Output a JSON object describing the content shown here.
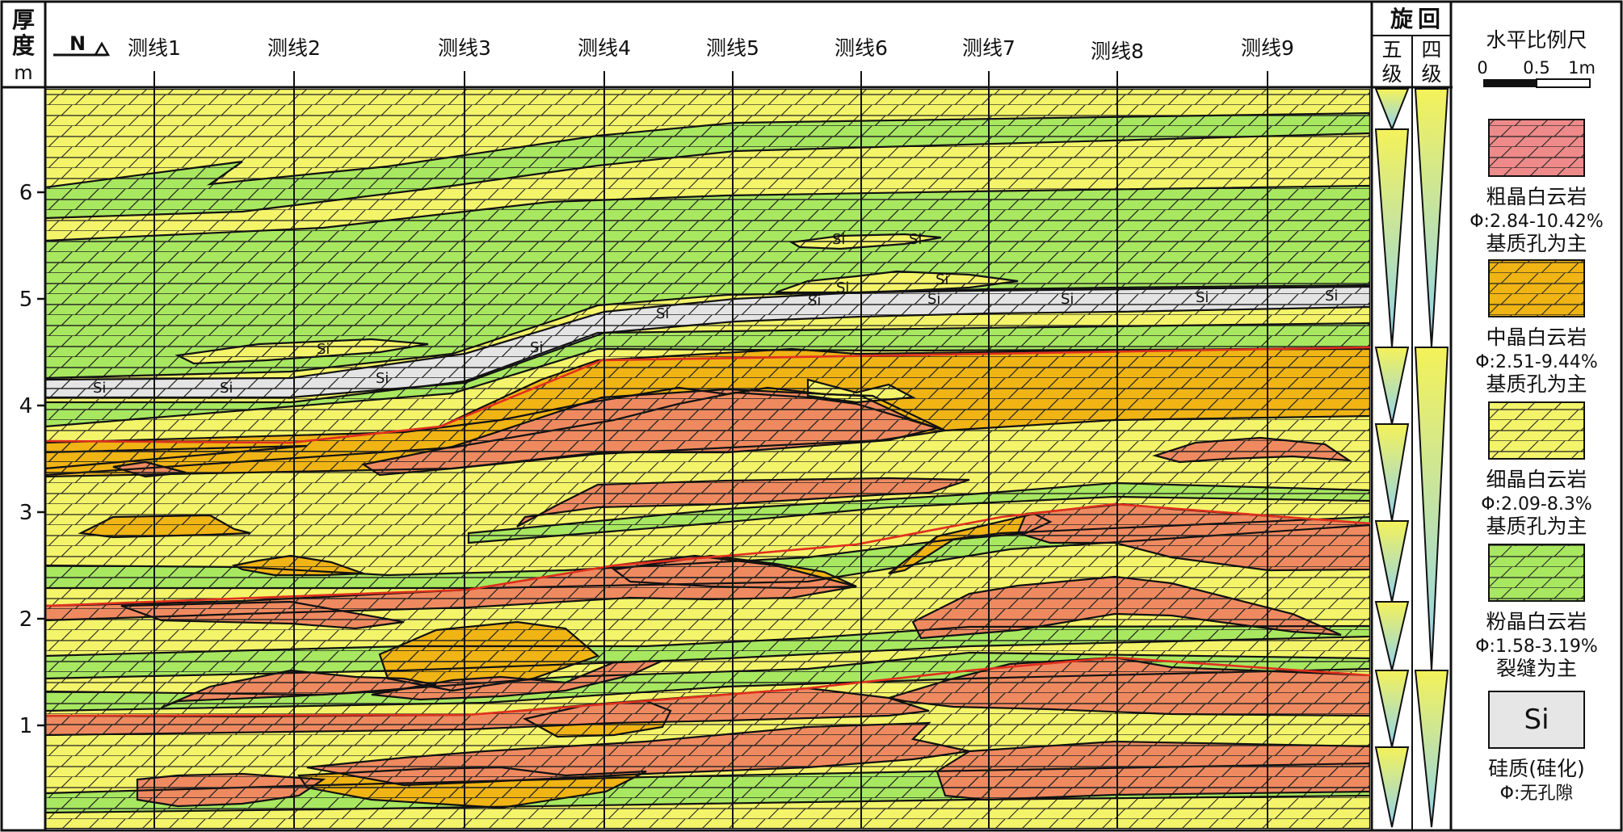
{
  "axis": {
    "title_chars": [
      "厚",
      "度"
    ],
    "unit": "m",
    "ticks": [
      "1",
      "2",
      "3",
      "4",
      "5",
      "6"
    ]
  },
  "north_arrow": {
    "label": "N"
  },
  "survey_lines": [
    "测线1",
    "测线2",
    "测线3",
    "测线4",
    "测线5",
    "测线6",
    "测线7",
    "测线8",
    "测线9"
  ],
  "cycle_header": {
    "title_chars": [
      "旋",
      "回"
    ],
    "fifth_chars": [
      "五",
      "级"
    ],
    "fourth_chars": [
      "四",
      "级"
    ]
  },
  "scale_bar": {
    "title": "水平比例尺",
    "labels": [
      "0",
      "0.5",
      "1m"
    ]
  },
  "silica_label": "Si",
  "legend": [
    {
      "name": "粗晶白云岩",
      "porosity": "Φ:2.84-10.42%",
      "pore_type": "基质孔为主",
      "color": "#ef8a8a"
    },
    {
      "name": "中晶白云岩",
      "porosity": "Φ:2.51-9.44%",
      "pore_type": "基质孔为主",
      "color": "#f0b414"
    },
    {
      "name": "细晶白云岩",
      "porosity": "Φ:2.09-8.3%",
      "pore_type": "基质孔为主",
      "color": "#f4f46a"
    },
    {
      "name": "粉晶白云岩",
      "porosity": "Φ:1.58-3.19%",
      "pore_type": "裂缝为主",
      "color": "#a8e860"
    },
    {
      "name": "硅质(硅化)",
      "porosity": "Φ:无孔隙",
      "pore_type": "",
      "color": "#e6e6e6",
      "symbol": "Si"
    }
  ],
  "colors": {
    "coarse": "#ef8a60",
    "medium": "#f0b414",
    "fine": "#f4f46a",
    "silt": "#a8e860",
    "silica": "#e4e4e4",
    "boundary_red": "#e0301e",
    "line": "#111111"
  }
}
